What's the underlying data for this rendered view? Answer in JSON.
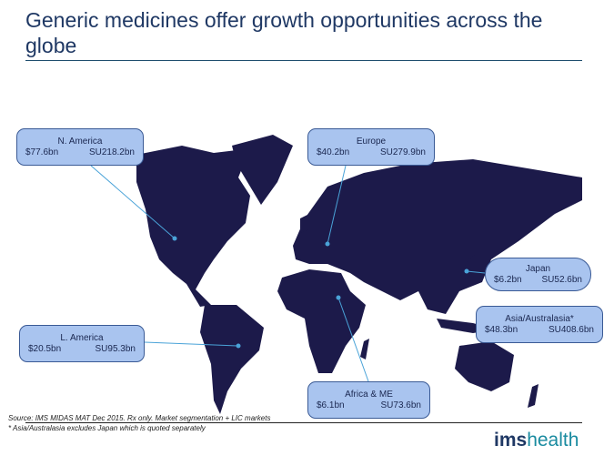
{
  "title": "Generic medicines offer growth opportunities across the globe",
  "regions": [
    {
      "name": "N. America",
      "value": "$77.6bn",
      "units": "SU218.2bn"
    },
    {
      "name": "Europe",
      "value": "$40.2bn",
      "units": "SU279.9bn"
    },
    {
      "name": "Japan",
      "value": "$6.2bn",
      "units": "SU52.6bn"
    },
    {
      "name": "Asia/Australasia*",
      "value": "$48.3bn",
      "units": "SU408.6bn"
    },
    {
      "name": "L. America",
      "value": "$20.5bn",
      "units": "SU95.3bn"
    },
    {
      "name": "Africa & ME",
      "value": "$6.1bn",
      "units": "SU73.6bn"
    }
  ],
  "footer": {
    "source": "Source: IMS MIDAS MAT Dec 2015. Rx only. Market segmentation + LIC markets",
    "footnote": "* Asia/Australasia excludes Japan which is quoted separately",
    "logo_bold": "ims",
    "logo_light": "health"
  },
  "colors": {
    "map": "#1c1a4a",
    "callout": "#a9c4ef",
    "title": "#1f3864",
    "logo": "#1a8ba0"
  }
}
